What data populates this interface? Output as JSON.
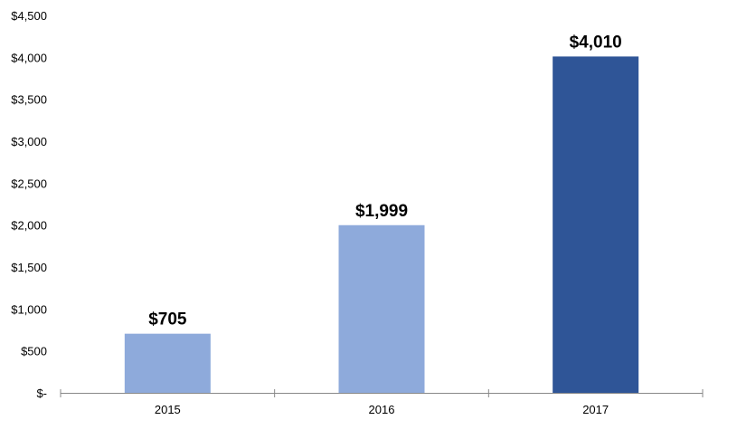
{
  "chart_data": {
    "type": "bar",
    "categories": [
      "2015",
      "2016",
      "2017"
    ],
    "values": [
      705,
      1999,
      4010
    ],
    "data_labels": [
      "$705",
      "$1,999",
      "$4,010"
    ],
    "ylim": [
      0,
      4500
    ],
    "yticks": [
      0,
      500,
      1000,
      1500,
      2000,
      2500,
      3000,
      3500,
      4000,
      4500
    ],
    "ytick_labels": [
      "$-",
      "$500",
      "$1,000",
      "$1,500",
      "$2,000",
      "$2,500",
      "$3,000",
      "$3,500",
      "$4,000",
      "$4,500"
    ],
    "bar_colors": [
      "#8eaadb",
      "#8eaadb",
      "#2f5597"
    ],
    "grid": false,
    "legend": "none"
  }
}
